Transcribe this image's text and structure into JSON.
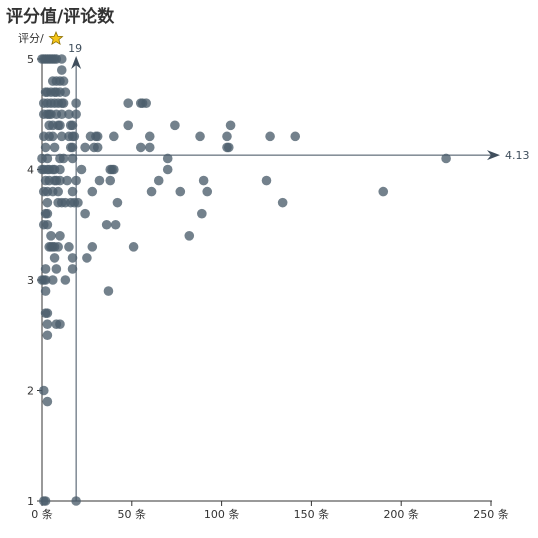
{
  "chart_data": {
    "type": "scatter",
    "title": "评分值/评论数",
    "ylabel": "评分/",
    "ylabel_icon": "star-icon",
    "x_unit": "条",
    "xlim": [
      0,
      250
    ],
    "ylim": [
      1,
      5
    ],
    "x_ticks": [
      "0 条",
      "50 条",
      "100 条",
      "150 条",
      "200 条",
      "250 条"
    ],
    "y_ticks": [
      "1",
      "2",
      "3",
      "4",
      "5"
    ],
    "ref_x": {
      "value": 19,
      "label": "19"
    },
    "ref_y": {
      "value": 4.13,
      "label": "4.13"
    },
    "grid": false,
    "colors": {
      "point": "#4b5d6b",
      "ref": "#3f4e5c",
      "star": "#f5c518"
    },
    "points": [
      [
        0,
        5
      ],
      [
        1,
        5
      ],
      [
        2,
        5
      ],
      [
        3,
        5
      ],
      [
        4,
        5
      ],
      [
        5,
        5
      ],
      [
        6,
        5
      ],
      [
        7,
        5
      ],
      [
        8,
        5
      ],
      [
        11,
        5
      ],
      [
        11,
        4.9
      ],
      [
        12,
        4.8
      ],
      [
        6,
        4.8
      ],
      [
        8,
        4.8
      ],
      [
        10,
        4.8
      ],
      [
        2,
        4.7
      ],
      [
        3,
        4.7
      ],
      [
        5,
        4.7
      ],
      [
        7,
        4.7
      ],
      [
        8,
        4.7
      ],
      [
        10,
        4.7
      ],
      [
        13,
        4.7
      ],
      [
        1,
        4.6
      ],
      [
        3,
        4.6
      ],
      [
        5,
        4.6
      ],
      [
        7,
        4.6
      ],
      [
        9,
        4.6
      ],
      [
        11,
        4.6
      ],
      [
        12,
        4.6
      ],
      [
        19,
        4.6
      ],
      [
        48,
        4.6
      ],
      [
        55,
        4.6
      ],
      [
        56,
        4.6
      ],
      [
        58,
        4.6
      ],
      [
        1,
        4.5
      ],
      [
        3,
        4.5
      ],
      [
        4,
        4.5
      ],
      [
        5,
        4.5
      ],
      [
        8,
        4.5
      ],
      [
        11,
        4.5
      ],
      [
        15,
        4.5
      ],
      [
        19,
        4.5
      ],
      [
        4,
        4.4
      ],
      [
        6,
        4.4
      ],
      [
        9,
        4.4
      ],
      [
        10,
        4.4
      ],
      [
        16,
        4.4
      ],
      [
        17,
        4.4
      ],
      [
        48,
        4.4
      ],
      [
        74,
        4.4
      ],
      [
        105,
        4.4
      ],
      [
        1,
        4.3
      ],
      [
        4,
        4.3
      ],
      [
        6,
        4.3
      ],
      [
        11,
        4.3
      ],
      [
        15,
        4.3
      ],
      [
        17,
        4.3
      ],
      [
        18,
        4.3
      ],
      [
        27,
        4.3
      ],
      [
        30,
        4.3
      ],
      [
        31,
        4.3
      ],
      [
        40,
        4.3
      ],
      [
        60,
        4.3
      ],
      [
        88,
        4.3
      ],
      [
        103,
        4.3
      ],
      [
        127,
        4.3
      ],
      [
        141,
        4.3
      ],
      [
        2,
        4.2
      ],
      [
        7,
        4.2
      ],
      [
        16,
        4.2
      ],
      [
        17,
        4.2
      ],
      [
        24,
        4.2
      ],
      [
        29,
        4.2
      ],
      [
        31,
        4.2
      ],
      [
        55,
        4.2
      ],
      [
        60,
        4.2
      ],
      [
        103,
        4.2
      ],
      [
        104,
        4.2
      ],
      [
        0,
        4.1
      ],
      [
        3,
        4.1
      ],
      [
        10,
        4.1
      ],
      [
        12,
        4.1
      ],
      [
        17,
        4.1
      ],
      [
        70,
        4.1
      ],
      [
        225,
        4.1
      ],
      [
        0,
        4
      ],
      [
        1,
        4
      ],
      [
        3,
        4
      ],
      [
        4,
        4
      ],
      [
        6,
        4
      ],
      [
        7,
        4
      ],
      [
        10,
        4
      ],
      [
        22,
        4
      ],
      [
        38,
        4
      ],
      [
        39,
        4
      ],
      [
        40,
        4
      ],
      [
        70,
        4
      ],
      [
        2,
        3.9
      ],
      [
        4,
        3.9
      ],
      [
        7,
        3.9
      ],
      [
        8,
        3.9
      ],
      [
        10,
        3.9
      ],
      [
        14,
        3.9
      ],
      [
        19,
        3.9
      ],
      [
        32,
        3.9
      ],
      [
        38,
        3.9
      ],
      [
        65,
        3.9
      ],
      [
        90,
        3.9
      ],
      [
        125,
        3.9
      ],
      [
        1,
        3.8
      ],
      [
        3,
        3.8
      ],
      [
        6,
        3.8
      ],
      [
        9,
        3.8
      ],
      [
        17,
        3.8
      ],
      [
        28,
        3.8
      ],
      [
        61,
        3.8
      ],
      [
        77,
        3.8
      ],
      [
        92,
        3.8
      ],
      [
        190,
        3.8
      ],
      [
        3,
        3.7
      ],
      [
        9,
        3.7
      ],
      [
        11,
        3.7
      ],
      [
        13,
        3.7
      ],
      [
        16,
        3.7
      ],
      [
        18,
        3.7
      ],
      [
        20,
        3.7
      ],
      [
        42,
        3.7
      ],
      [
        134,
        3.7
      ],
      [
        2,
        3.6
      ],
      [
        3,
        3.6
      ],
      [
        24,
        3.6
      ],
      [
        89,
        3.6
      ],
      [
        1,
        3.5
      ],
      [
        3,
        3.5
      ],
      [
        36,
        3.5
      ],
      [
        41,
        3.5
      ],
      [
        5,
        3.4
      ],
      [
        10,
        3.4
      ],
      [
        82,
        3.4
      ],
      [
        4,
        3.3
      ],
      [
        5,
        3.3
      ],
      [
        6,
        3.3
      ],
      [
        7,
        3.3
      ],
      [
        9,
        3.3
      ],
      [
        15,
        3.3
      ],
      [
        28,
        3.3
      ],
      [
        51,
        3.3
      ],
      [
        7,
        3.2
      ],
      [
        17,
        3.2
      ],
      [
        25,
        3.2
      ],
      [
        2,
        3.1
      ],
      [
        8,
        3.1
      ],
      [
        17,
        3.1
      ],
      [
        0,
        3
      ],
      [
        1,
        3
      ],
      [
        2,
        3
      ],
      [
        6,
        3
      ],
      [
        13,
        3
      ],
      [
        2,
        2.9
      ],
      [
        37,
        2.9
      ],
      [
        2,
        2.7
      ],
      [
        3,
        2.7
      ],
      [
        3,
        2.6
      ],
      [
        8,
        2.6
      ],
      [
        10,
        2.6
      ],
      [
        3,
        2.5
      ],
      [
        1,
        2
      ],
      [
        3,
        1.9
      ],
      [
        1,
        1
      ],
      [
        2,
        1
      ],
      [
        19,
        1
      ]
    ]
  }
}
